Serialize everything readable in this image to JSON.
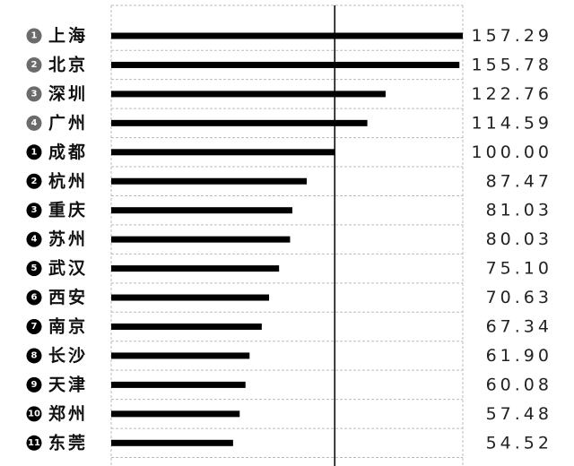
{
  "chart_data": {
    "type": "bar",
    "orientation": "horizontal",
    "categories": [
      "上海",
      "北京",
      "深圳",
      "广州",
      "成都",
      "杭州",
      "重庆",
      "苏州",
      "武汉",
      "西安",
      "南京",
      "长沙",
      "天津",
      "郑州",
      "东莞"
    ],
    "ranks": [
      "1",
      "2",
      "3",
      "4",
      "1",
      "2",
      "3",
      "4",
      "5",
      "6",
      "7",
      "8",
      "9",
      "10",
      "11"
    ],
    "rank_colors": [
      "#6b6b6b",
      "#6b6b6b",
      "#6b6b6b",
      "#6b6b6b",
      "#000000",
      "#000000",
      "#000000",
      "#000000",
      "#000000",
      "#000000",
      "#000000",
      "#000000",
      "#000000",
      "#000000",
      "#000000"
    ],
    "values": [
      157.29,
      155.78,
      122.76,
      114.59,
      100,
      87.47,
      81.03,
      80.03,
      75.1,
      70.63,
      67.34,
      61.9,
      60.08,
      57.48,
      54.52
    ],
    "value_labels": [
      "157.29",
      "155.78",
      "122.76",
      "114.59",
      "100.00",
      "87.47",
      "81.03",
      "80.03",
      "75.10",
      "70.63",
      "67.34",
      "61.90",
      "60.08",
      "57.48",
      "54.52"
    ],
    "color": "#000000",
    "xlim": [
      0,
      157.29
    ],
    "reference_line": 100,
    "grid": true
  }
}
